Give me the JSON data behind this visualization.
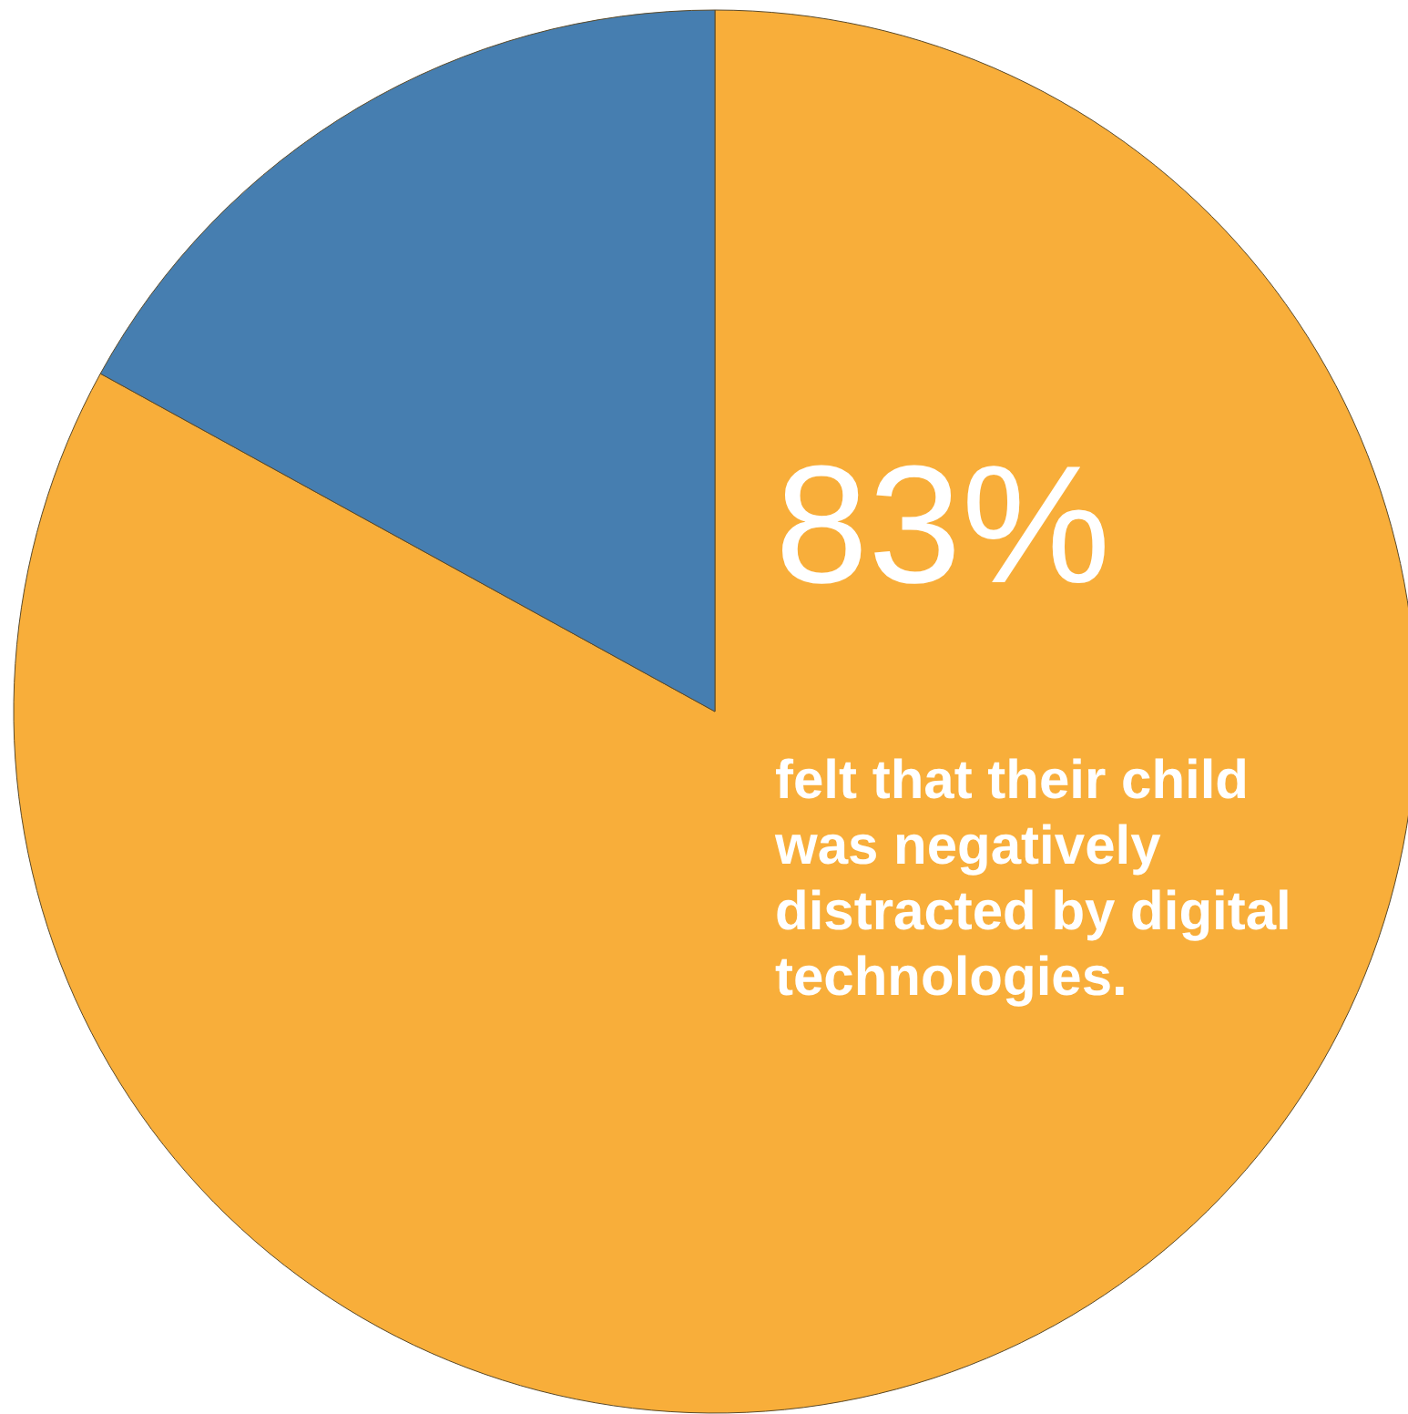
{
  "chart_data": {
    "type": "pie",
    "categories": [
      null,
      null
    ],
    "values": [
      83,
      17
    ],
    "colors": [
      "#f8ae3a",
      "#467eb0"
    ],
    "value_labels": [
      "83%",
      null
    ],
    "annotations": [
      "felt that their child was negatively distracted by digital technologies."
    ]
  }
}
